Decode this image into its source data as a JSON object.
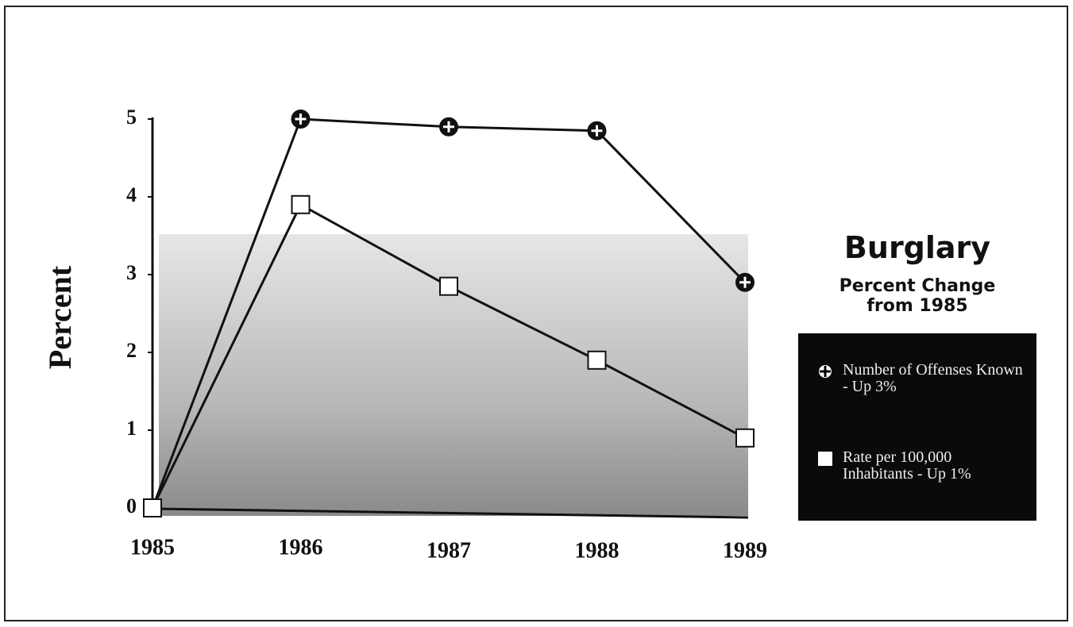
{
  "chart_data": {
    "type": "line",
    "title": "Burglary",
    "subtitle": "Percent Change from 1985",
    "y_label": "Percent",
    "categories": [
      "1985",
      "1986",
      "1987",
      "1988",
      "1989"
    ],
    "series": [
      {
        "name": "Number of Offenses Known - Up 3%",
        "color": "#111111",
        "values": [
          0,
          5,
          4.9,
          4.85,
          2.9
        ]
      },
      {
        "name": "Rate per 100,000 Inhabitants - Up 1%",
        "color": "#111111",
        "values": [
          0,
          3.9,
          2.85,
          1.9,
          0.9
        ]
      }
    ],
    "ylim": [
      0,
      5
    ],
    "yticks": [
      0,
      1,
      2,
      3,
      4,
      5
    ]
  }
}
